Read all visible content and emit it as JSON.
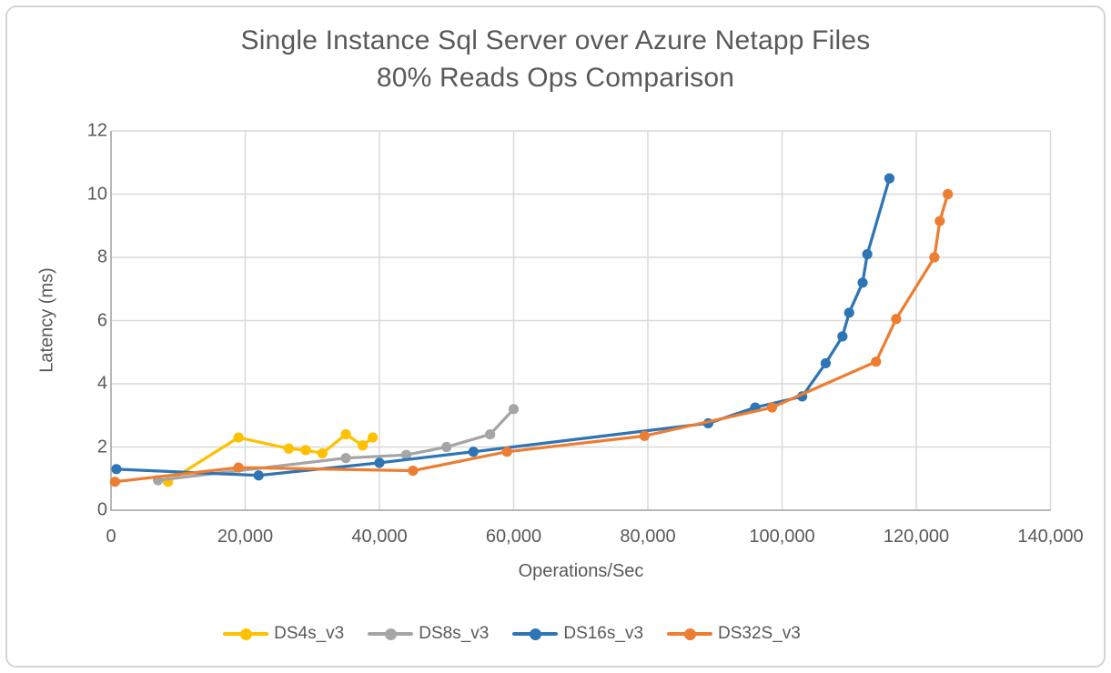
{
  "chart_data": {
    "type": "line",
    "title": "Single Instance Sql Server over Azure Netapp Files 80% Reads Ops Comparison",
    "title_lines": [
      "Single Instance Sql Server over Azure Netapp Files",
      "80% Reads Ops Comparison"
    ],
    "xlabel": "Operations/Sec",
    "ylabel": "Latency (ms)",
    "xlim": [
      0,
      140000
    ],
    "ylim": [
      0,
      12
    ],
    "x_ticks": [
      0,
      20000,
      40000,
      60000,
      80000,
      100000,
      120000,
      140000
    ],
    "x_tick_labels": [
      "0",
      "20,000",
      "40,000",
      "60,000",
      "80,000",
      "100,000",
      "120,000",
      "140,000"
    ],
    "y_ticks": [
      0,
      2,
      4,
      6,
      8,
      10,
      12
    ],
    "y_tick_labels": [
      "0",
      "2",
      "4",
      "6",
      "8",
      "10",
      "12"
    ],
    "grid": true,
    "legend_position": "bottom",
    "colors": {
      "gridline": "#d9d9d9",
      "axis_line": "#b7b7b7",
      "text": "#595959"
    },
    "series": [
      {
        "name": "DS4s_v3",
        "color": "#FFC000",
        "points": [
          [
            8500,
            0.9
          ],
          [
            19000,
            2.3
          ],
          [
            26500,
            1.95
          ],
          [
            29000,
            1.9
          ],
          [
            31500,
            1.8
          ],
          [
            35000,
            2.4
          ],
          [
            37500,
            2.05
          ],
          [
            39000,
            2.3
          ]
        ]
      },
      {
        "name": "DS8s_v3",
        "color": "#A5A5A5",
        "points": [
          [
            7000,
            0.95
          ],
          [
            35000,
            1.65
          ],
          [
            44000,
            1.75
          ],
          [
            50000,
            2.0
          ],
          [
            56500,
            2.4
          ],
          [
            60000,
            3.2
          ]
        ]
      },
      {
        "name": "DS16s_v3",
        "color": "#2E75B6",
        "points": [
          [
            800,
            1.3
          ],
          [
            22000,
            1.1
          ],
          [
            40000,
            1.5
          ],
          [
            54000,
            1.85
          ],
          [
            89000,
            2.75
          ],
          [
            96000,
            3.25
          ],
          [
            103000,
            3.6
          ],
          [
            106500,
            4.65
          ],
          [
            109000,
            5.5
          ],
          [
            110000,
            6.25
          ],
          [
            112000,
            7.2
          ],
          [
            112700,
            8.1
          ],
          [
            116000,
            10.5
          ]
        ]
      },
      {
        "name": "DS32S_v3",
        "color": "#ED7D31",
        "points": [
          [
            600,
            0.9
          ],
          [
            19000,
            1.35
          ],
          [
            45000,
            1.25
          ],
          [
            59000,
            1.85
          ],
          [
            79500,
            2.35
          ],
          [
            98500,
            3.25
          ],
          [
            114000,
            4.7
          ],
          [
            117000,
            6.05
          ],
          [
            122700,
            8.0
          ],
          [
            123500,
            9.15
          ],
          [
            124700,
            10.0
          ]
        ]
      }
    ]
  }
}
